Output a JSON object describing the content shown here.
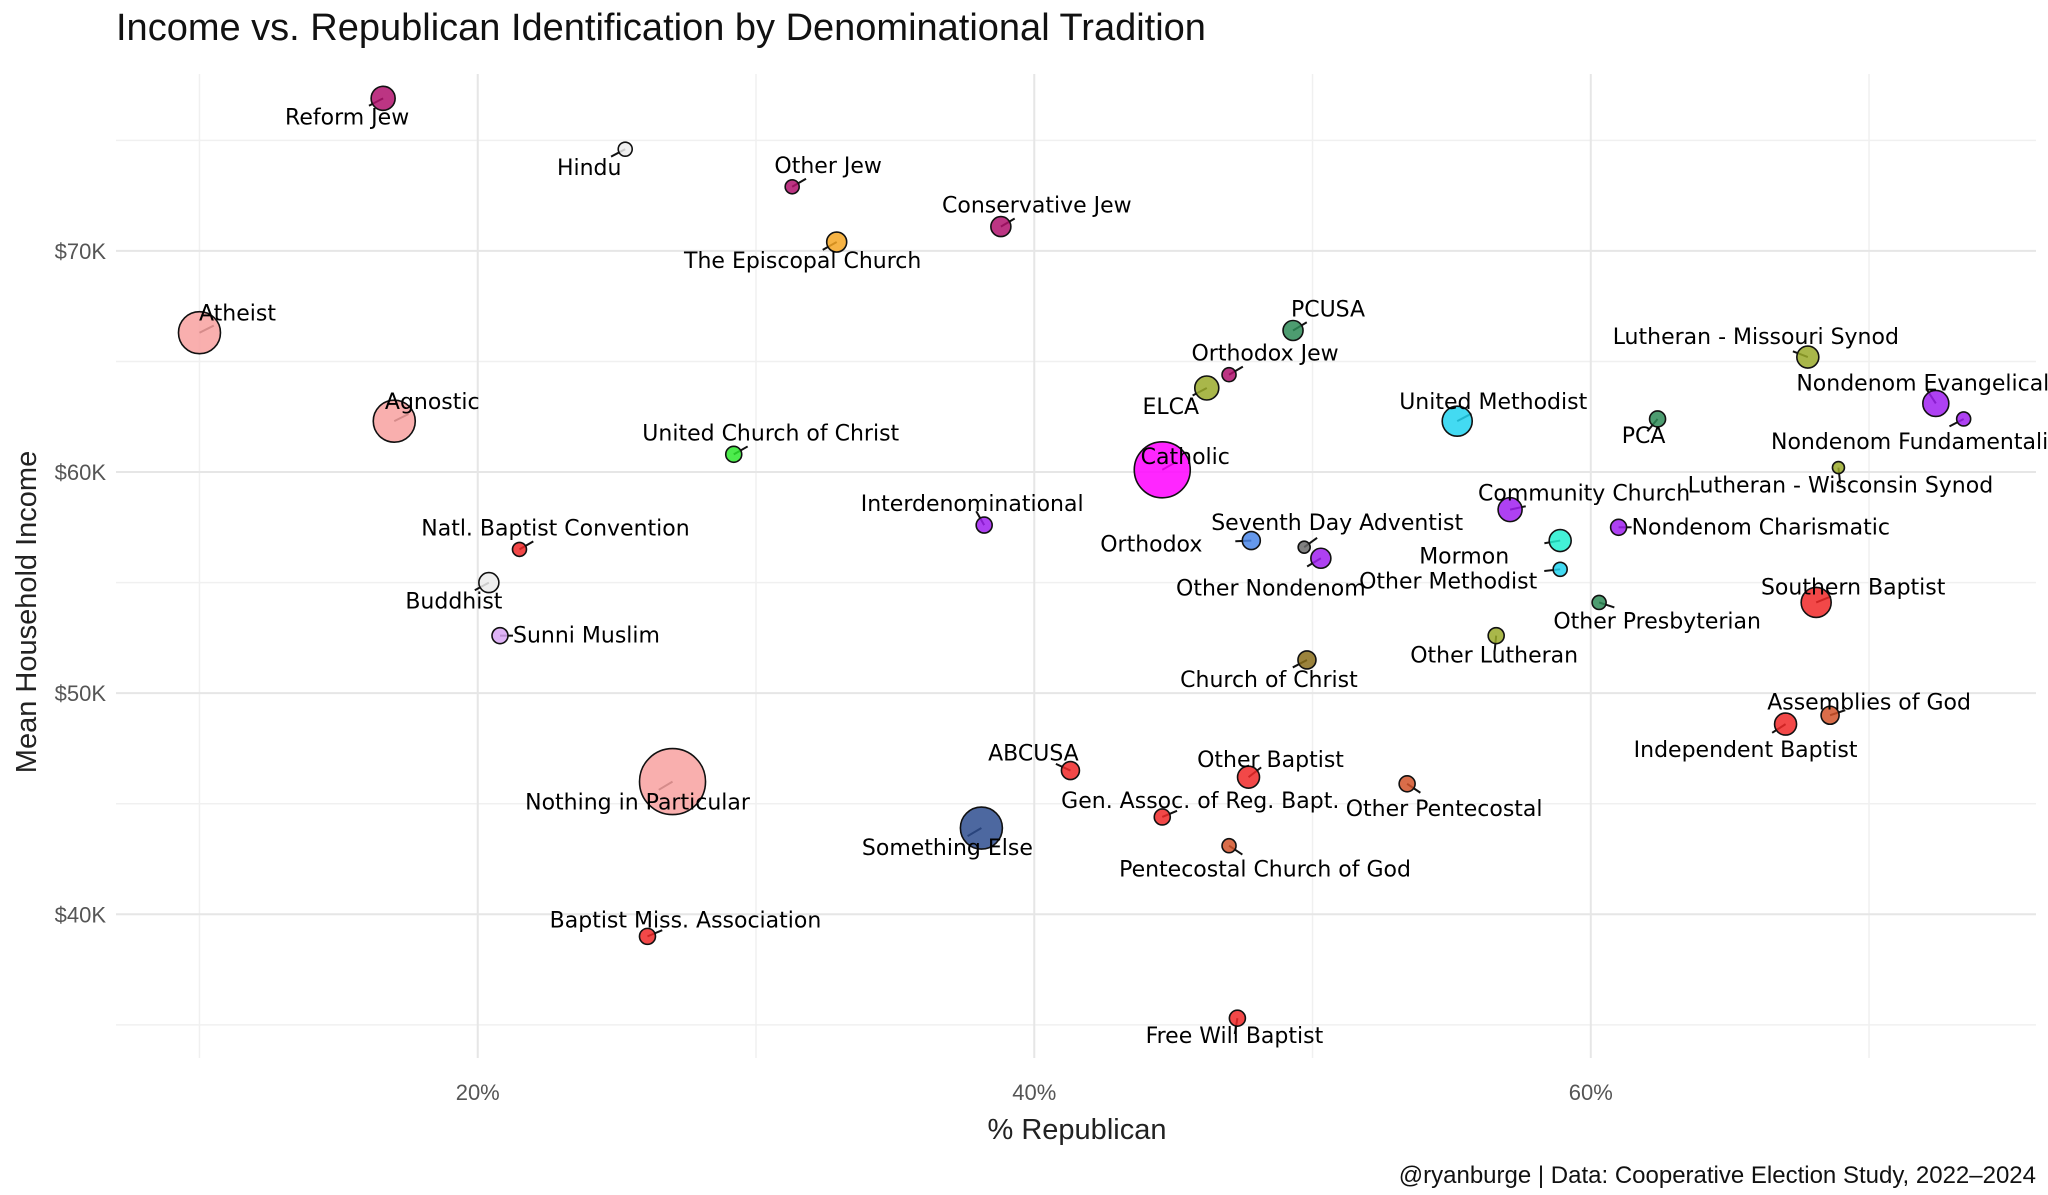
{
  "chart_data": {
    "type": "scatter",
    "title": "Income vs. Republican Identification by Denominational Tradition",
    "xlabel": "% Republican",
    "ylabel": "Mean Household Income",
    "caption": "@ryanburge | Data: Cooperative Election Study, 2022–2024",
    "xlim": [
      7,
      76
    ],
    "ylim": [
      33.5,
      78
    ],
    "x_ticks": [
      20,
      40,
      60
    ],
    "x_tick_labels": [
      "20%",
      "40%",
      "60%"
    ],
    "y_ticks": [
      40,
      50,
      60,
      70
    ],
    "y_tick_labels": [
      "$40K",
      "$50K",
      "$60K",
      "$70K"
    ],
    "points": [
      {
        "label": "Reform Jew",
        "x": 16.6,
        "y": 76.9,
        "size": 12,
        "color": "#b0126d"
      },
      {
        "label": "Hindu",
        "x": 25.3,
        "y": 74.6,
        "size": 7,
        "color": "#ececec"
      },
      {
        "label": "Other Jew",
        "x": 31.3,
        "y": 72.9,
        "size": 7,
        "color": "#b0126d"
      },
      {
        "label": "Conservative Jew",
        "x": 38.8,
        "y": 71.1,
        "size": 10,
        "color": "#b0126d"
      },
      {
        "label": "The Episcopal Church",
        "x": 32.9,
        "y": 70.4,
        "size": 10,
        "color": "#f5a623"
      },
      {
        "label": "Atheist",
        "x": 10.0,
        "y": 66.3,
        "size": 21,
        "color": "#f8a1a0"
      },
      {
        "label": "Agnostic",
        "x": 17.0,
        "y": 62.3,
        "size": 21,
        "color": "#f8a1a0"
      },
      {
        "label": "PCUSA",
        "x": 49.3,
        "y": 66.4,
        "size": 10,
        "color": "#2e8b57"
      },
      {
        "label": "Orthodox Jew",
        "x": 47.0,
        "y": 64.4,
        "size": 7,
        "color": "#b0126d"
      },
      {
        "label": "ELCA",
        "x": 46.2,
        "y": 63.8,
        "size": 12,
        "color": "#9aaa2a"
      },
      {
        "label": "Lutheran - Missouri Synod",
        "x": 67.8,
        "y": 65.2,
        "size": 11,
        "color": "#9aaa2a"
      },
      {
        "label": "Nondenom Evangelical",
        "x": 72.4,
        "y": 63.1,
        "size": 13,
        "color": "#a020f0"
      },
      {
        "label": "Nondenom Fundamentalist",
        "x": 73.4,
        "y": 62.4,
        "size": 7,
        "color": "#a020f0"
      },
      {
        "label": "PCA",
        "x": 62.4,
        "y": 62.4,
        "size": 8,
        "color": "#2e8b57"
      },
      {
        "label": "United Methodist",
        "x": 55.2,
        "y": 62.3,
        "size": 15,
        "color": "#22d3f0"
      },
      {
        "label": "United Church of Christ",
        "x": 29.2,
        "y": 60.8,
        "size": 8,
        "color": "#2ee82e"
      },
      {
        "label": "Catholic",
        "x": 44.6,
        "y": 60.1,
        "size": 28,
        "color": "#ff00ff"
      },
      {
        "label": "Lutheran - Wisconsin Synod",
        "x": 68.9,
        "y": 60.2,
        "size": 6,
        "color": "#9aaa2a"
      },
      {
        "label": "Community Church",
        "x": 57.1,
        "y": 58.3,
        "size": 12,
        "color": "#a020f0"
      },
      {
        "label": "Interdenominational",
        "x": 38.2,
        "y": 57.6,
        "size": 8,
        "color": "#a020f0"
      },
      {
        "label": "Nondenom Charismatic",
        "x": 61.0,
        "y": 57.5,
        "size": 8,
        "color": "#a020f0"
      },
      {
        "label": "Mormon",
        "x": 58.9,
        "y": 56.9,
        "size": 11,
        "color": "#22f0d0"
      },
      {
        "label": "Orthodox",
        "x": 47.8,
        "y": 56.9,
        "size": 9,
        "color": "#4a86e8"
      },
      {
        "label": "Seventh Day Adventist",
        "x": 49.7,
        "y": 56.6,
        "size": 6,
        "color": "#6b6b6b"
      },
      {
        "label": "Natl. Baptist Convention",
        "x": 21.5,
        "y": 56.5,
        "size": 7,
        "color": "#f02828"
      },
      {
        "label": "Other Nondenom",
        "x": 50.3,
        "y": 56.1,
        "size": 10,
        "color": "#a020f0"
      },
      {
        "label": "Other Methodist",
        "x": 58.9,
        "y": 55.6,
        "size": 7,
        "color": "#22d3f0"
      },
      {
        "label": "Buddhist",
        "x": 20.4,
        "y": 55.0,
        "size": 10,
        "color": "#ececec"
      },
      {
        "label": "Southern Baptist",
        "x": 68.1,
        "y": 54.1,
        "size": 15,
        "color": "#f02828"
      },
      {
        "label": "Other Presbyterian",
        "x": 60.3,
        "y": 54.1,
        "size": 7,
        "color": "#2e8b57"
      },
      {
        "label": "Sunni Muslim",
        "x": 20.8,
        "y": 52.6,
        "size": 8,
        "color": "#d9a6f5"
      },
      {
        "label": "Other Lutheran",
        "x": 56.6,
        "y": 52.6,
        "size": 8,
        "color": "#9aaa2a"
      },
      {
        "label": "Church of Christ",
        "x": 49.8,
        "y": 51.5,
        "size": 9,
        "color": "#8a6d1a"
      },
      {
        "label": "Assemblies of God",
        "x": 68.6,
        "y": 49.0,
        "size": 9,
        "color": "#d2532a"
      },
      {
        "label": "Independent Baptist",
        "x": 67.0,
        "y": 48.6,
        "size": 11,
        "color": "#f02828"
      },
      {
        "label": "ABCUSA",
        "x": 41.3,
        "y": 46.5,
        "size": 9,
        "color": "#f02828"
      },
      {
        "label": "Other Baptist",
        "x": 47.7,
        "y": 46.2,
        "size": 11,
        "color": "#f02828"
      },
      {
        "label": "Nothing in Particular",
        "x": 27.0,
        "y": 46.0,
        "size": 33,
        "color": "#f8a1a0"
      },
      {
        "label": "Other Pentecostal",
        "x": 53.4,
        "y": 45.9,
        "size": 8,
        "color": "#d2532a"
      },
      {
        "label": "Gen. Assoc. of Reg. Bapt.",
        "x": 44.6,
        "y": 44.4,
        "size": 8,
        "color": "#f02828"
      },
      {
        "label": "Something Else",
        "x": 38.1,
        "y": 43.9,
        "size": 21,
        "color": "#2e4e8f"
      },
      {
        "label": "Pentecostal Church of God",
        "x": 47.0,
        "y": 43.1,
        "size": 7,
        "color": "#d2532a"
      },
      {
        "label": "Baptist Miss. Association",
        "x": 26.1,
        "y": 39.0,
        "size": 8,
        "color": "#f02828"
      },
      {
        "label": "Free Will Baptist",
        "x": 47.3,
        "y": 35.3,
        "size": 8,
        "color": "#f02828"
      }
    ]
  }
}
